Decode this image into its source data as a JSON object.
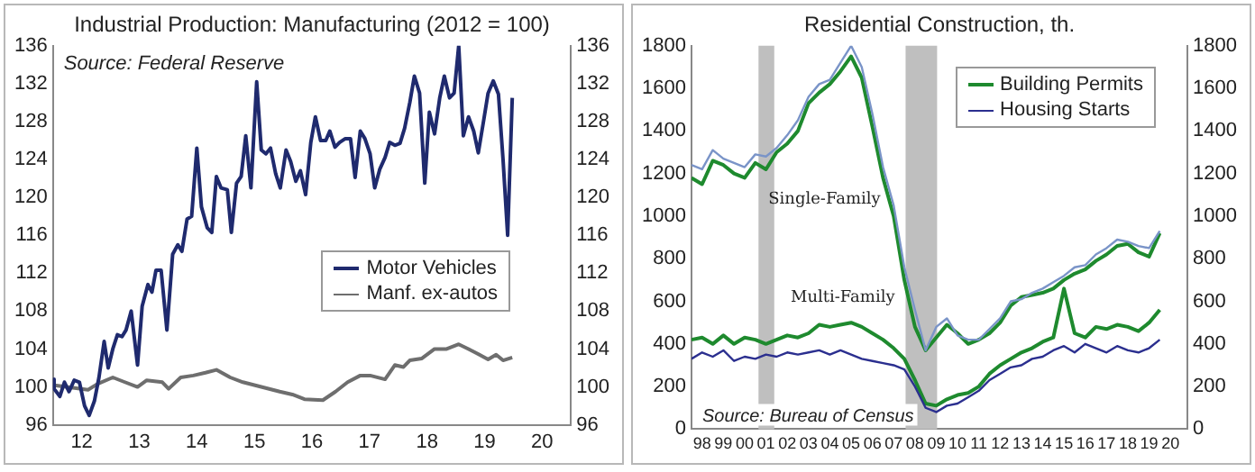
{
  "chart_data": [
    {
      "type": "line",
      "title": "Industrial Production: Manufacturing (2012 = 100)",
      "marker": "none",
      "legend": "right",
      "annotations": [
        "Source: Federal Reserve"
      ],
      "xlim": [
        2011.5,
        2020.5
      ],
      "xticks": [
        {
          "value": 2012,
          "label": "12"
        },
        {
          "value": 2013,
          "label": "13"
        },
        {
          "value": 2014,
          "label": "14"
        },
        {
          "value": 2015,
          "label": "15"
        },
        {
          "value": 2016,
          "label": "16"
        },
        {
          "value": 2017,
          "label": "17"
        },
        {
          "value": 2018,
          "label": "18"
        },
        {
          "value": 2019,
          "label": "19"
        },
        {
          "value": 2020,
          "label": "20"
        }
      ],
      "ylim": [
        96,
        136
      ],
      "yticks": [
        96,
        100,
        104,
        108,
        112,
        116,
        120,
        124,
        128,
        132,
        136
      ],
      "y2lim": [
        96,
        136
      ],
      "y2ticks": [
        96,
        100,
        104,
        108,
        112,
        116,
        120,
        124,
        128,
        132,
        136
      ],
      "series": [
        {
          "name": "Motor Vehicles",
          "color": "#1f2a6e",
          "x": [
            2011.5,
            2011.52,
            2011.62,
            2011.7,
            2011.78,
            2011.87,
            2011.96,
            2012.05,
            2012.13,
            2012.22,
            2012.3,
            2012.39,
            2012.46,
            2012.54,
            2012.62,
            2012.7,
            2012.77,
            2012.86,
            2012.97,
            2013.05,
            2013.15,
            2013.22,
            2013.29,
            2013.38,
            2013.48,
            2013.58,
            2013.67,
            2013.74,
            2013.83,
            2013.91,
            2014.0,
            2014.08,
            2014.18,
            2014.26,
            2014.34,
            2014.42,
            2014.53,
            2014.6,
            2014.69,
            2014.77,
            2014.85,
            2014.94,
            2015.04,
            2015.12,
            2015.2,
            2015.28,
            2015.37,
            2015.45,
            2015.55,
            2015.63,
            2015.72,
            2015.8,
            2015.89,
            2015.98,
            2016.06,
            2016.15,
            2016.24,
            2016.31,
            2016.4,
            2016.48,
            2016.58,
            2016.67,
            2016.75,
            2016.84,
            2016.92,
            2017.01,
            2017.09,
            2017.18,
            2017.27,
            2017.35,
            2017.44,
            2017.53,
            2017.61,
            2017.7,
            2017.78,
            2017.87,
            2017.96,
            2018.04,
            2018.13,
            2018.22,
            2018.3,
            2018.39,
            2018.47,
            2018.55,
            2018.63,
            2018.72,
            2018.81,
            2018.89,
            2018.98,
            2019.06,
            2019.15,
            2019.24,
            2019.32,
            2019.4,
            2019.48
          ],
          "values": [
            100.8,
            99.8,
            99,
            100.5,
            99.5,
            100.7,
            100.5,
            98,
            97,
            98.5,
            101,
            104.8,
            102,
            104,
            105.5,
            105.3,
            106,
            108,
            102.3,
            108.5,
            110.8,
            110,
            112.3,
            112.3,
            106,
            114,
            115,
            114.3,
            117.7,
            118,
            125.2,
            119,
            116.8,
            116.3,
            122.2,
            121,
            120.8,
            116.3,
            121.5,
            122.2,
            126.5,
            121,
            132.2,
            125,
            124.6,
            125.2,
            122.5,
            121,
            125,
            123.8,
            121.7,
            122.8,
            120.3,
            125.8,
            128.5,
            126,
            126,
            127,
            125.3,
            125.8,
            126.2,
            126.2,
            122.1,
            127,
            126.2,
            124.6,
            121,
            123,
            124.2,
            125.8,
            125.5,
            125.7,
            127.3,
            130,
            132.8,
            131,
            121.5,
            129,
            126.7,
            130.5,
            132.8,
            130.5,
            131,
            136,
            126.5,
            128.5,
            127,
            124.7,
            128,
            131,
            132.3,
            130.9,
            124,
            116,
            130.5
          ]
        },
        {
          "name": "Manf. ex-autos",
          "color": "#6e6e6e",
          "x": [
            2011.5,
            2012.11,
            2012.27,
            2012.54,
            2012.75,
            2012.97,
            2013.13,
            2013.4,
            2013.51,
            2013.72,
            2013.94,
            2014.15,
            2014.34,
            2014.58,
            2014.8,
            2015.12,
            2015.44,
            2015.66,
            2015.87,
            2016.19,
            2016.41,
            2016.62,
            2016.84,
            2017.01,
            2017.27,
            2017.44,
            2017.59,
            2017.7,
            2017.91,
            2018.13,
            2018.34,
            2018.55,
            2018.72,
            2018.88,
            2019.06,
            2019.2,
            2019.32,
            2019.48
          ],
          "values": [
            100.2,
            99.7,
            100.3,
            101,
            100.5,
            100,
            100.7,
            100.5,
            99.8,
            101,
            101.2,
            101.5,
            101.8,
            101,
            100.5,
            100,
            99.5,
            99.2,
            98.7,
            98.6,
            99.5,
            100.5,
            101.2,
            101.2,
            100.8,
            102.3,
            102.1,
            102.8,
            103,
            104,
            104,
            104.5,
            104,
            103.5,
            102.9,
            103.4,
            102.8,
            103.1
          ]
        }
      ]
    },
    {
      "type": "line",
      "title": "Residential Construction, th.",
      "marker": "none",
      "legend": "top right",
      "annotations": [
        "Source: Bureau of Census",
        "Single-Family",
        "Multi-Family"
      ],
      "bands": [
        {
          "axis": "x",
          "from": 2000.65,
          "to": 2001.39,
          "color": "#bfbfbf"
        },
        {
          "axis": "x",
          "from": 2007.56,
          "to": 2009.04,
          "color": "#bfbfbf"
        }
      ],
      "xlim": [
        1997.5,
        2020.8
      ],
      "xticks": [
        {
          "value": 1998,
          "label": "98"
        },
        {
          "value": 1999,
          "label": "99"
        },
        {
          "value": 2000,
          "label": "00"
        },
        {
          "value": 2001,
          "label": "01"
        },
        {
          "value": 2002,
          "label": "02"
        },
        {
          "value": 2003,
          "label": "03"
        },
        {
          "value": 2004,
          "label": "04"
        },
        {
          "value": 2005,
          "label": "05"
        },
        {
          "value": 2006,
          "label": "06"
        },
        {
          "value": 2007,
          "label": "07"
        },
        {
          "value": 2008,
          "label": "08"
        },
        {
          "value": 2009,
          "label": "09"
        },
        {
          "value": 2010,
          "label": "10"
        },
        {
          "value": 2011,
          "label": "11"
        },
        {
          "value": 2012,
          "label": "12"
        },
        {
          "value": 2013,
          "label": "13"
        },
        {
          "value": 2014,
          "label": "14"
        },
        {
          "value": 2015,
          "label": "15"
        },
        {
          "value": 2016,
          "label": "16"
        },
        {
          "value": 2017,
          "label": "17"
        },
        {
          "value": 2018,
          "label": "18"
        },
        {
          "value": 2019,
          "label": "19"
        },
        {
          "value": 2020,
          "label": "20"
        }
      ],
      "ylim": [
        0,
        1800
      ],
      "yticks": [
        0,
        200,
        400,
        600,
        800,
        1000,
        1200,
        1400,
        1600,
        1800
      ],
      "y2lim": [
        0,
        1800
      ],
      "y2ticks": [
        0,
        200,
        400,
        600,
        800,
        1000,
        1200,
        1400,
        1600,
        1800
      ],
      "x": [
        1997.5,
        1998.0,
        1998.5,
        1999.0,
        1999.5,
        2000.0,
        2000.5,
        2001.0,
        2001.5,
        2002.0,
        2002.5,
        2003.0,
        2003.5,
        2004.0,
        2004.5,
        2005.0,
        2005.5,
        2006.0,
        2006.5,
        2007.0,
        2007.5,
        2008.0,
        2008.5,
        2009.0,
        2009.5,
        2010.0,
        2010.5,
        2011.0,
        2011.5,
        2012.0,
        2012.5,
        2013.0,
        2013.5,
        2014.0,
        2014.5,
        2015.0,
        2015.5,
        2016.0,
        2016.5,
        2017.0,
        2017.5,
        2018.0,
        2018.5,
        2019.0,
        2019.5
      ],
      "series": [
        {
          "color": "#7a94c8",
          "values": [
            1240,
            1220,
            1310,
            1270,
            1250,
            1230,
            1290,
            1280,
            1320,
            1380,
            1450,
            1560,
            1620,
            1640,
            1720,
            1800,
            1700,
            1480,
            1230,
            1050,
            760,
            560,
            370,
            480,
            520,
            440,
            420,
            420,
            470,
            520,
            600,
            610,
            640,
            660,
            690,
            720,
            760,
            770,
            820,
            850,
            890,
            880,
            860,
            850,
            930
          ]
        },
        {
          "name": "Building Permits",
          "color": "#1e8a2e",
          "values": [
            1180,
            1150,
            1260,
            1240,
            1200,
            1180,
            1250,
            1220,
            1300,
            1340,
            1400,
            1530,
            1580,
            1620,
            1680,
            1750,
            1650,
            1420,
            1180,
            1000,
            700,
            480,
            370,
            430,
            490,
            450,
            400,
            420,
            450,
            500,
            580,
            620,
            630,
            640,
            660,
            700,
            730,
            750,
            790,
            820,
            860,
            870,
            830,
            810,
            920
          ]
        },
        {
          "name": "Housing Starts",
          "color": "#2b2f8f",
          "values": [
            330,
            360,
            340,
            370,
            320,
            340,
            330,
            350,
            340,
            360,
            350,
            360,
            370,
            350,
            370,
            350,
            330,
            320,
            310,
            300,
            280,
            200,
            100,
            80,
            110,
            120,
            150,
            180,
            230,
            260,
            290,
            300,
            330,
            340,
            370,
            390,
            360,
            400,
            380,
            360,
            390,
            370,
            360,
            380,
            420
          ]
        },
        {
          "color": "#1e8a2e",
          "values": [
            420,
            430,
            400,
            440,
            400,
            430,
            420,
            400,
            420,
            440,
            430,
            450,
            490,
            480,
            490,
            500,
            480,
            450,
            420,
            380,
            330,
            230,
            120,
            110,
            140,
            160,
            170,
            200,
            260,
            300,
            330,
            360,
            380,
            410,
            430,
            660,
            450,
            430,
            480,
            470,
            490,
            480,
            460,
            500,
            560
          ]
        }
      ]
    }
  ]
}
